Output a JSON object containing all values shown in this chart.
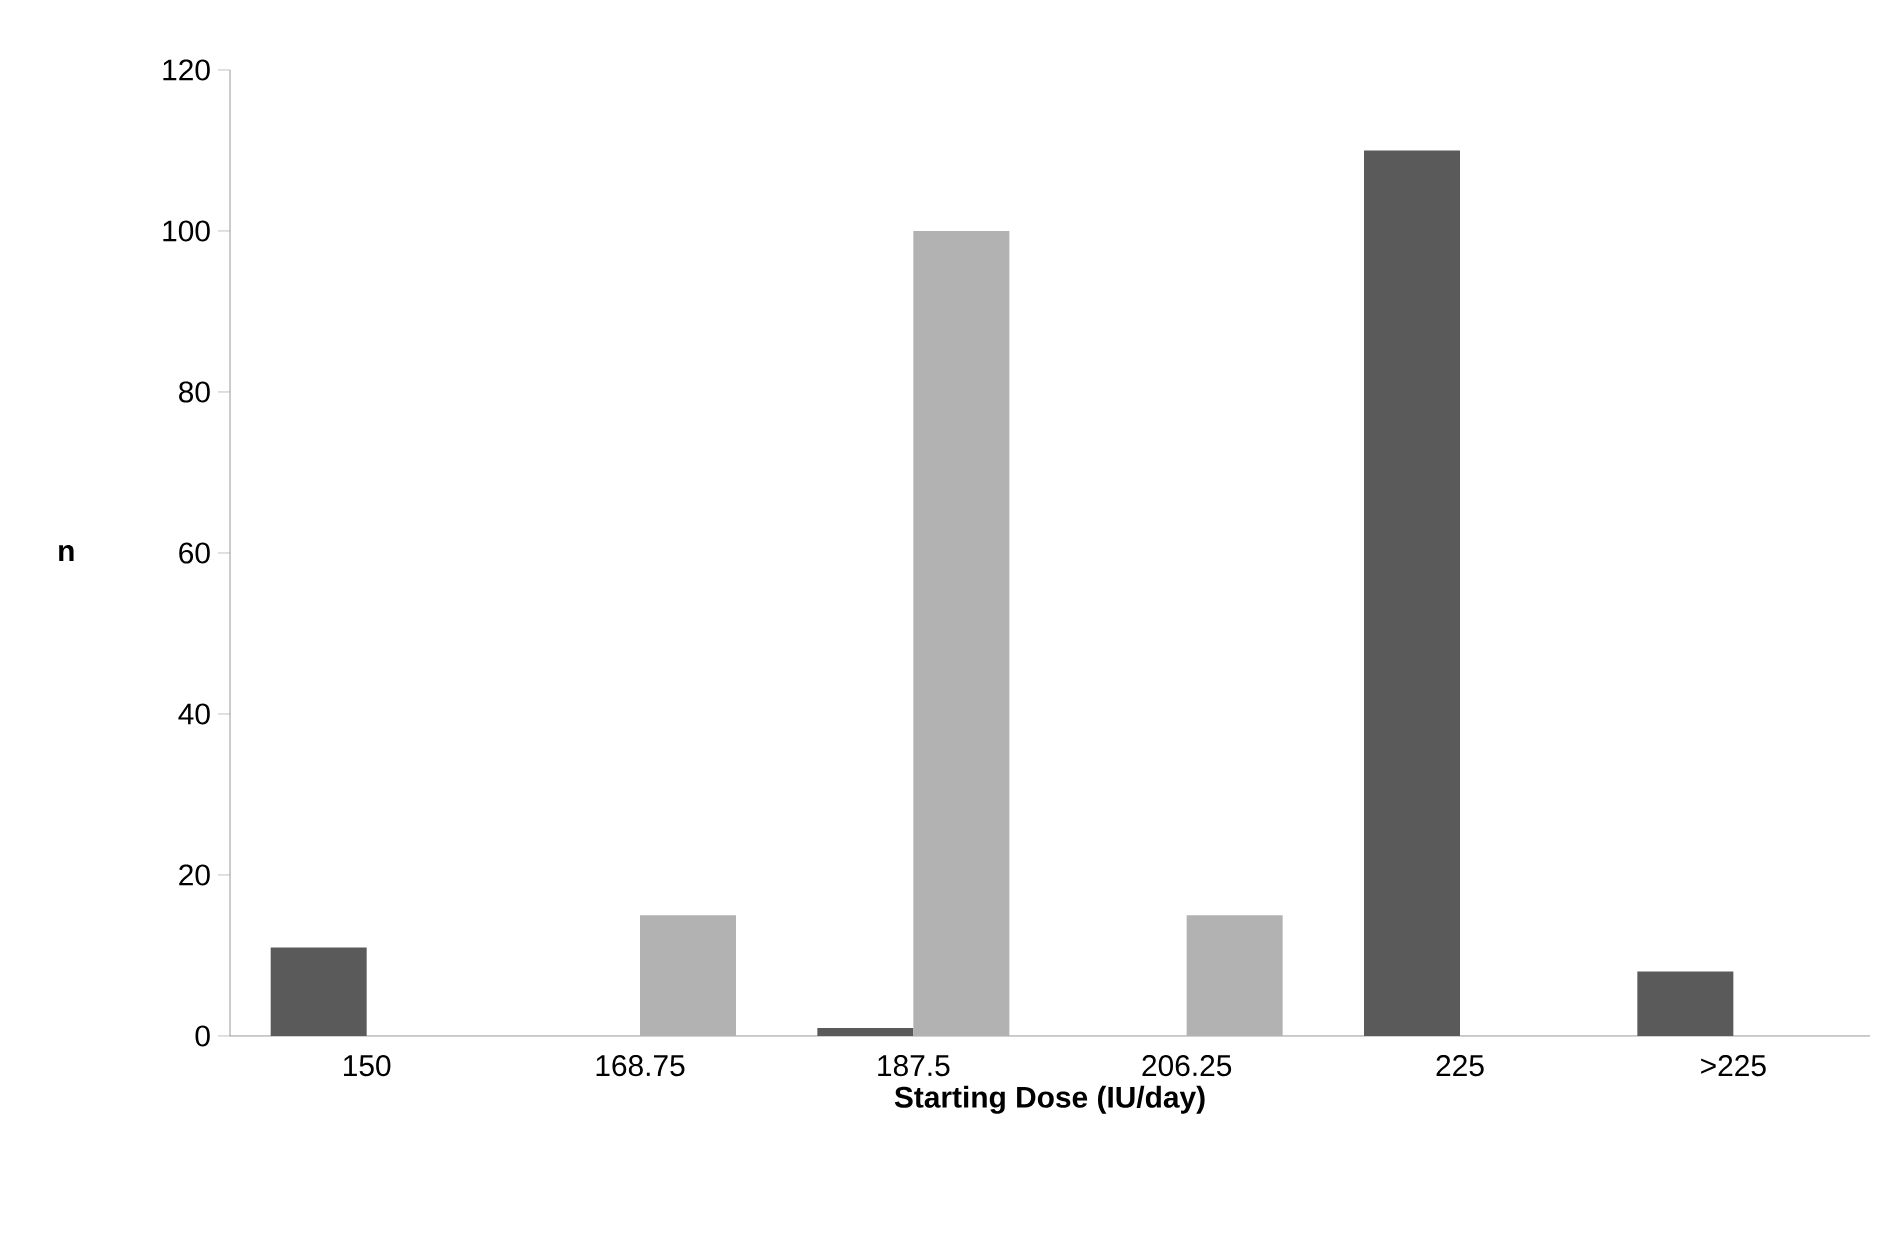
{
  "chart_data": {
    "type": "bar",
    "xlabel": "Starting Dose (IU/day)",
    "ylabel": "n",
    "categories": [
      "150",
      "168.75",
      "187.5",
      "206.25",
      "225",
      ">225"
    ],
    "series": [
      {
        "color": "#5a5a5a",
        "values": [
          11,
          null,
          1,
          null,
          110,
          8
        ]
      },
      {
        "color": "#b2b2b2",
        "values": [
          null,
          15,
          100,
          15,
          null,
          null
        ]
      }
    ],
    "ylim": [
      0,
      120
    ],
    "yticks": [
      0,
      20,
      40,
      60,
      80,
      100,
      120
    ],
    "grid": false
  }
}
